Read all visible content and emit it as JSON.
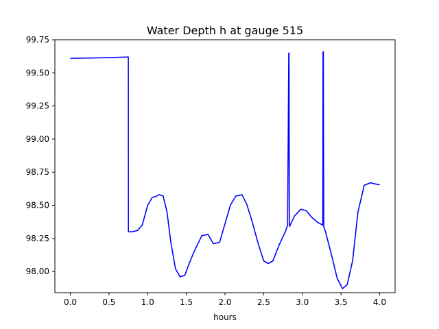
{
  "chart_data": {
    "type": "line",
    "title": "Water Depth h at gauge 515",
    "xlabel": "hours",
    "ylabel": "",
    "xlim": [
      -0.2,
      4.2
    ],
    "ylim": [
      97.84,
      99.75
    ],
    "xticks": [
      0.0,
      0.5,
      1.0,
      1.5,
      2.0,
      2.5,
      3.0,
      3.5,
      4.0
    ],
    "xtick_labels": [
      "0.0",
      "0.5",
      "1.0",
      "1.5",
      "2.0",
      "2.5",
      "3.0",
      "3.5",
      "4.0"
    ],
    "yticks": [
      98.0,
      98.25,
      98.5,
      98.75,
      99.0,
      99.25,
      99.5,
      99.75
    ],
    "ytick_labels": [
      "98.00",
      "98.25",
      "98.50",
      "98.75",
      "99.00",
      "99.25",
      "99.50",
      "99.75"
    ],
    "grid": false,
    "legend": "none",
    "series": [
      {
        "color": "#0000ff",
        "x": [
          0.0,
          0.25,
          0.5,
          0.75,
          0.751,
          0.8,
          0.87,
          0.93,
          1.0,
          1.06,
          1.1,
          1.15,
          1.2,
          1.25,
          1.3,
          1.36,
          1.42,
          1.48,
          1.53,
          1.6,
          1.7,
          1.78,
          1.85,
          1.93,
          2.0,
          2.07,
          2.14,
          2.22,
          2.28,
          2.35,
          2.42,
          2.5,
          2.56,
          2.62,
          2.7,
          2.78,
          2.81,
          2.825,
          2.828,
          2.832,
          2.836,
          2.85,
          2.9,
          2.98,
          3.05,
          3.12,
          3.2,
          3.265,
          3.268,
          3.272,
          3.277,
          3.3,
          3.38,
          3.45,
          3.52,
          3.58,
          3.65,
          3.72,
          3.8,
          3.88,
          3.95,
          4.0
        ],
        "y": [
          99.61,
          99.612,
          99.615,
          99.62,
          98.3,
          98.3,
          98.31,
          98.35,
          98.5,
          98.56,
          98.565,
          98.58,
          98.57,
          98.45,
          98.22,
          98.02,
          97.96,
          97.97,
          98.05,
          98.15,
          98.27,
          98.28,
          98.21,
          98.22,
          98.36,
          98.5,
          98.57,
          98.58,
          98.51,
          98.38,
          98.23,
          98.08,
          98.06,
          98.08,
          98.2,
          98.3,
          98.35,
          99.65,
          99.65,
          98.4,
          98.34,
          98.36,
          98.42,
          98.47,
          98.46,
          98.41,
          98.37,
          98.35,
          99.66,
          99.66,
          98.34,
          98.3,
          98.12,
          97.95,
          97.87,
          97.9,
          98.08,
          98.45,
          98.65,
          98.67,
          98.66,
          98.655
        ]
      }
    ]
  }
}
